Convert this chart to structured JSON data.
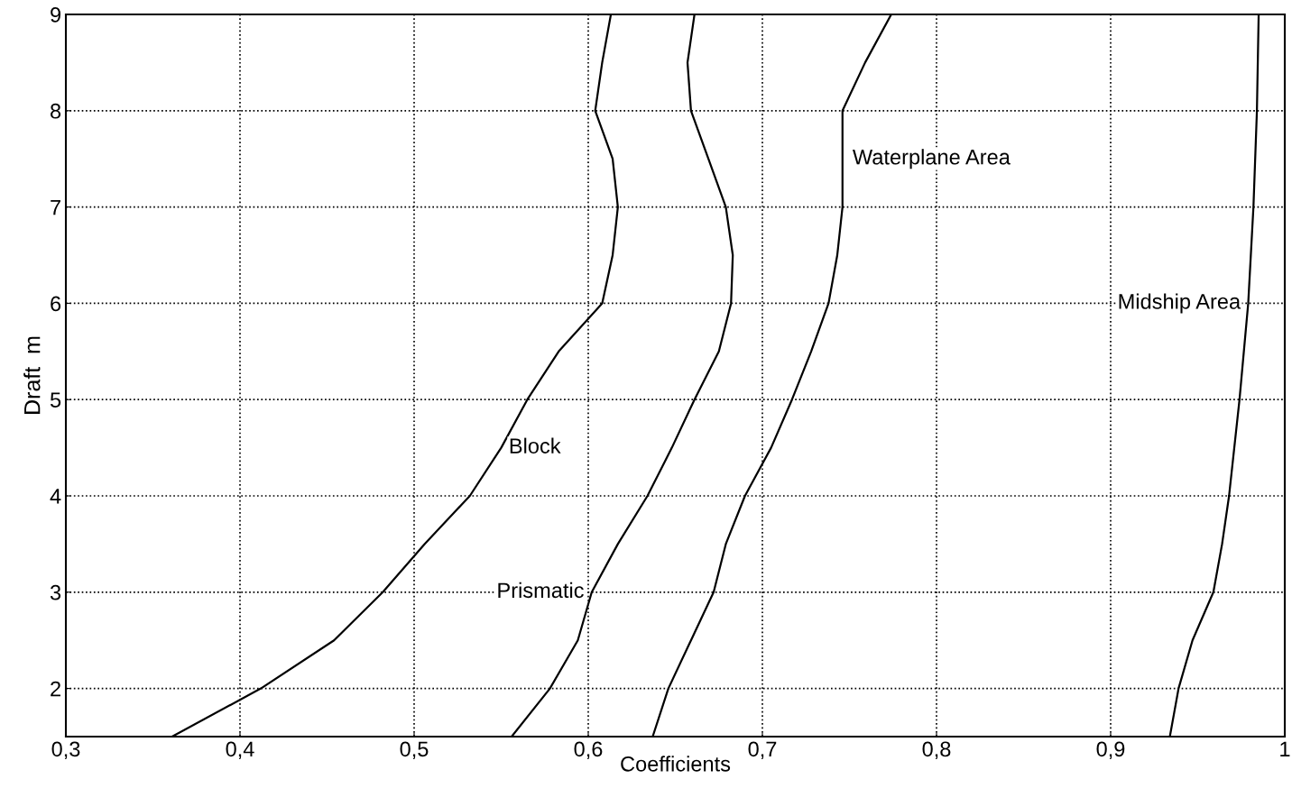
{
  "chart_data": {
    "type": "line",
    "xlabel": "Coefficients",
    "ylabel": "Draft  m",
    "xlim": [
      0.3,
      1.0
    ],
    "ylim": [
      1.5,
      9
    ],
    "xticks": [
      {
        "value": 0.3,
        "label": "0,3"
      },
      {
        "value": 0.4,
        "label": "0,4"
      },
      {
        "value": 0.5,
        "label": "0,5"
      },
      {
        "value": 0.6,
        "label": "0,6"
      },
      {
        "value": 0.7,
        "label": "0,7"
      },
      {
        "value": 0.8,
        "label": "0,8"
      },
      {
        "value": 0.9,
        "label": "0,9"
      },
      {
        "value": 1.0,
        "label": "1"
      }
    ],
    "yticks": [
      2,
      3,
      4,
      5,
      6,
      7,
      8,
      9
    ],
    "grid": true,
    "line_style": "solid",
    "marker": "none",
    "series": [
      {
        "name": "Block",
        "color": "#000000",
        "x": [
          0.361,
          0.412,
          0.454,
          0.482,
          0.506,
          0.532,
          0.55,
          0.565,
          0.583,
          0.608,
          0.614,
          0.617,
          0.614,
          0.604,
          0.608,
          0.613
        ],
        "values": [
          1.5,
          2,
          2.5,
          3,
          3.5,
          4,
          4.5,
          5,
          5.5,
          6,
          6.5,
          7,
          7.5,
          8,
          8.5,
          9
        ]
      },
      {
        "name": "Prismatic",
        "color": "#000000",
        "x": [
          0.556,
          0.578,
          0.594,
          0.602,
          0.617,
          0.634,
          0.648,
          0.661,
          0.675,
          0.682,
          0.683,
          0.679,
          0.669,
          0.659,
          0.657,
          0.661
        ],
        "values": [
          1.5,
          2,
          2.5,
          3,
          3.5,
          4,
          4.5,
          5,
          5.5,
          6,
          6.5,
          7,
          7.5,
          8,
          8.5,
          9
        ]
      },
      {
        "name": "Waterplane Area",
        "color": "#000000",
        "x": [
          0.637,
          0.646,
          0.659,
          0.672,
          0.679,
          0.69,
          0.705,
          0.717,
          0.728,
          0.738,
          0.743,
          0.746,
          0.746,
          0.746,
          0.759,
          0.774
        ],
        "values": [
          1.5,
          2,
          2.5,
          3,
          3.5,
          4,
          4.5,
          5,
          5.5,
          6,
          6.5,
          7,
          7.5,
          8,
          8.5,
          9
        ]
      },
      {
        "name": "Midship Area",
        "color": "#000000",
        "x": [
          0.934,
          0.939,
          0.947,
          0.959,
          0.964,
          0.968,
          0.974,
          0.979,
          0.982,
          0.984,
          0.985
        ],
        "values": [
          1.5,
          2,
          2.5,
          3,
          3.5,
          4,
          5,
          6,
          7,
          8,
          9
        ]
      }
    ]
  }
}
